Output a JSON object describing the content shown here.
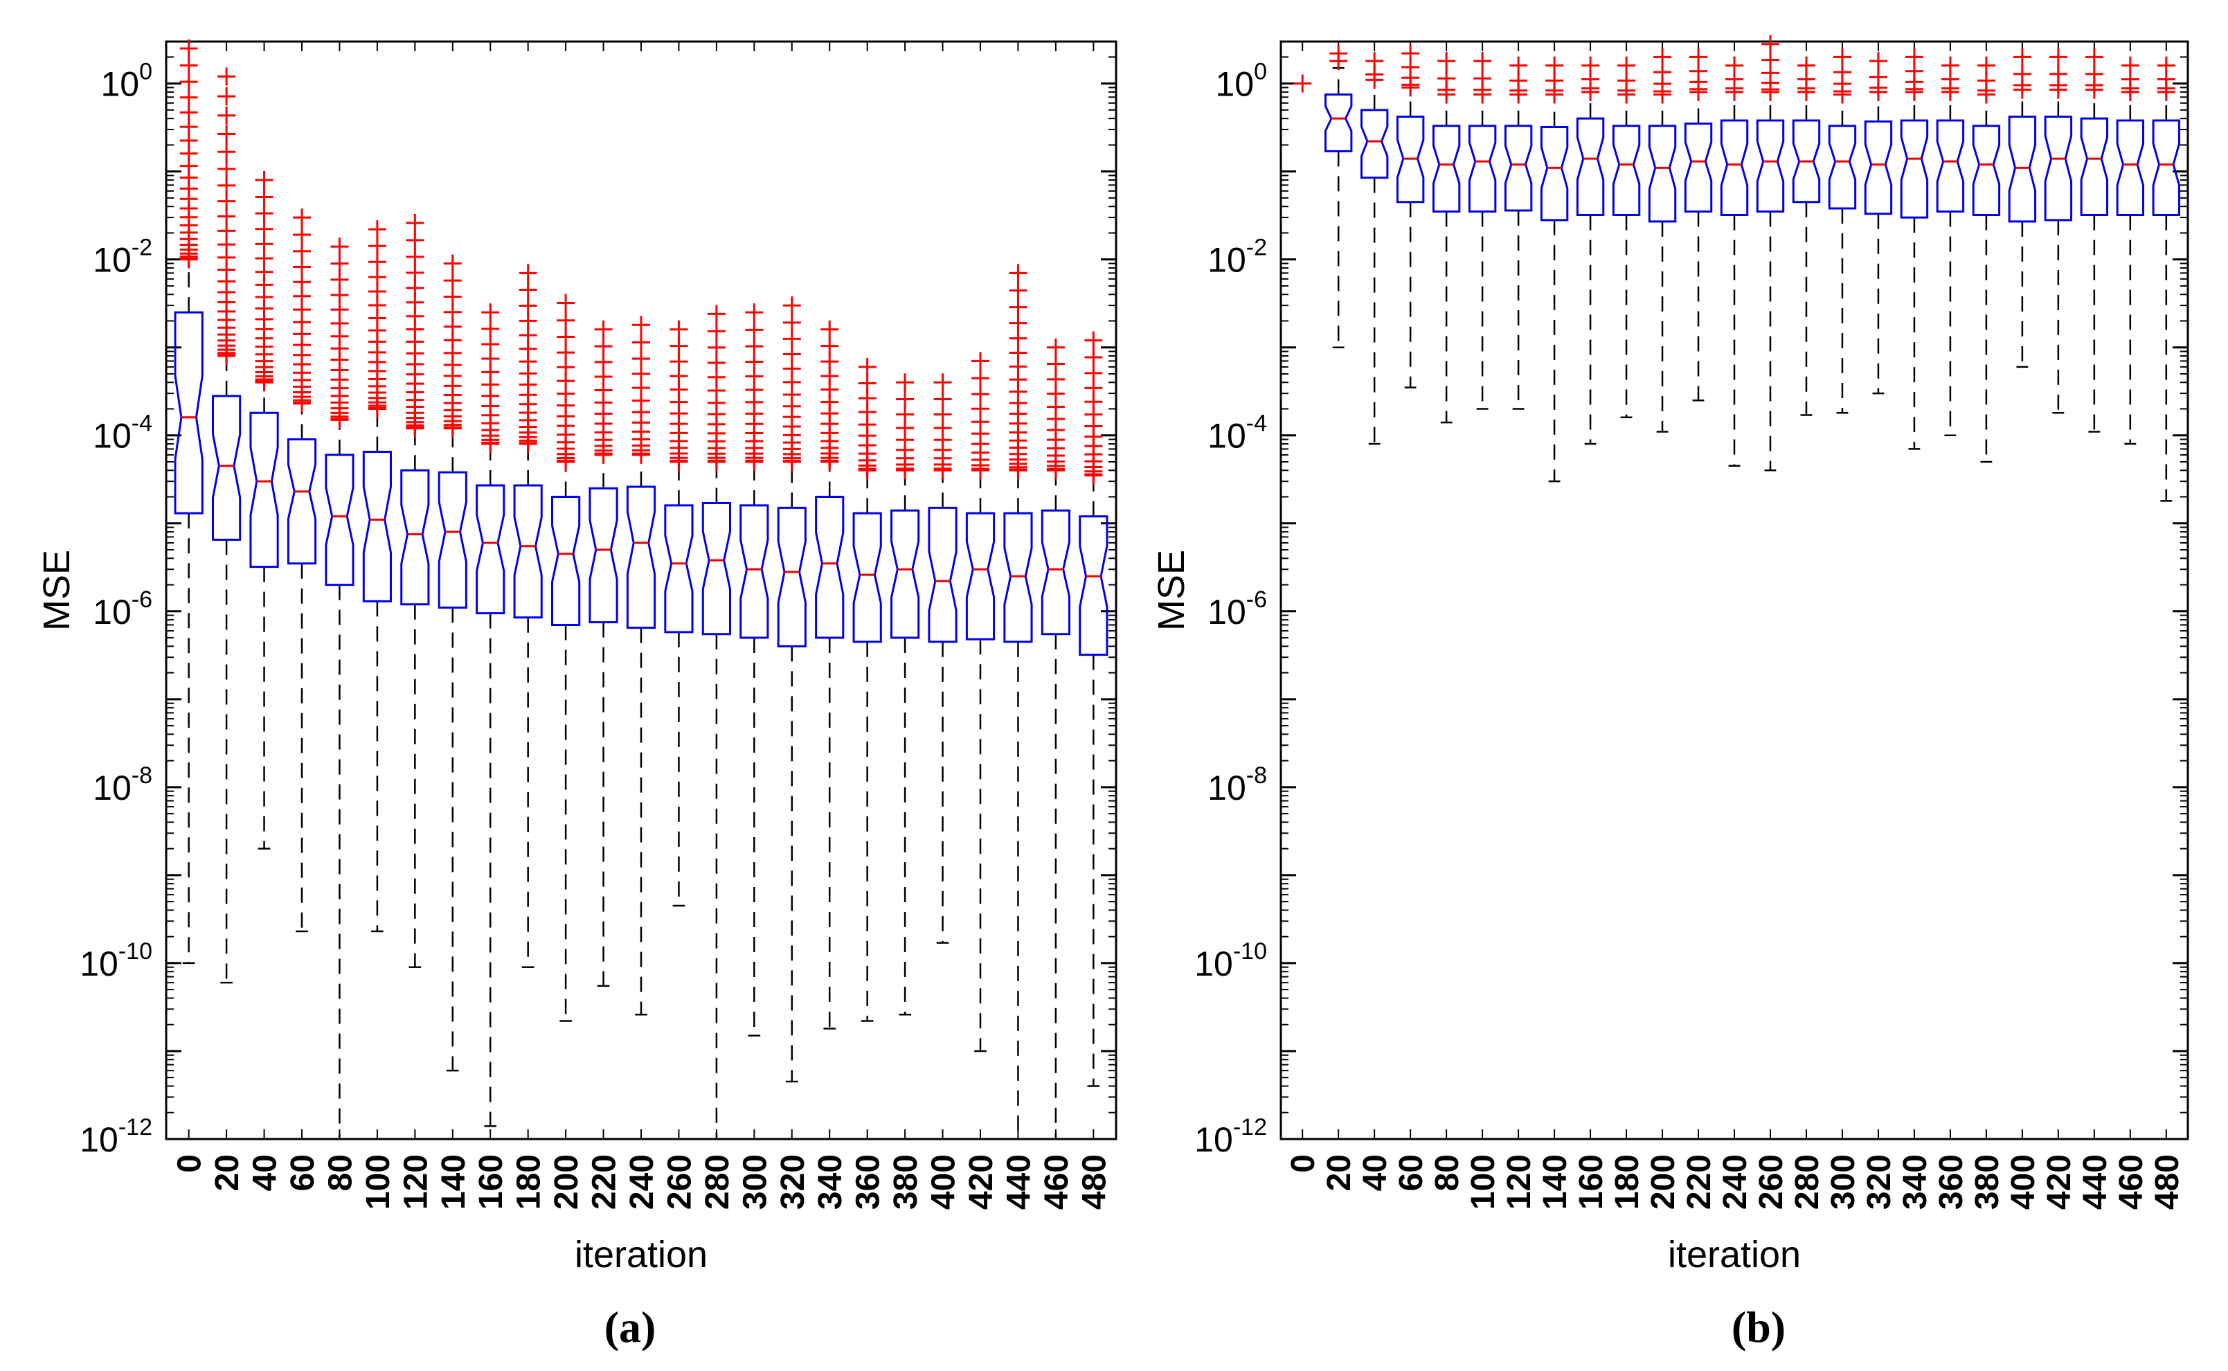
{
  "chart_data": [
    {
      "type": "boxplot",
      "panel_label": "(a)",
      "xlabel": "iteration",
      "ylabel": "MSE",
      "yscale": "log",
      "ylim": [
        1e-12,
        3
      ],
      "y_ticks": [
        {
          "base": "10",
          "exp": "-12"
        },
        {
          "base": "10",
          "exp": "-10"
        },
        {
          "base": "10",
          "exp": "-8"
        },
        {
          "base": "10",
          "exp": "-6"
        },
        {
          "base": "10",
          "exp": "-4"
        },
        {
          "base": "10",
          "exp": "-2"
        },
        {
          "base": "10",
          "exp": "0"
        }
      ],
      "categories": [
        "0",
        "20",
        "40",
        "60",
        "80",
        "100",
        "120",
        "140",
        "160",
        "180",
        "200",
        "220",
        "240",
        "260",
        "280",
        "300",
        "320",
        "340",
        "360",
        "380",
        "400",
        "420",
        "440",
        "460",
        "480"
      ],
      "boxes": [
        {
          "whisker_low": 1e-10,
          "q1": 1.3e-05,
          "median": 0.00016,
          "q3": 0.0025,
          "whisker_high": 0.01,
          "outliers_low": 0.01,
          "outliers_high": 2.5
        },
        {
          "whisker_low": 6e-11,
          "q1": 6.5e-06,
          "median": 4.5e-05,
          "q3": 0.00028,
          "whisker_high": 0.0008,
          "outliers_low": 0.0008,
          "outliers_high": 1.2
        },
        {
          "whisker_low": 2e-09,
          "q1": 3.2e-06,
          "median": 3e-05,
          "q3": 0.00018,
          "whisker_high": 0.0004,
          "outliers_low": 0.0004,
          "outliers_high": 0.08
        },
        {
          "whisker_low": 2.3e-10,
          "q1": 3.5e-06,
          "median": 2.3e-05,
          "q3": 9e-05,
          "whisker_high": 0.00023,
          "outliers_low": 0.00023,
          "outliers_high": 0.03
        },
        {
          "whisker_low": 1e-12,
          "q1": 2e-06,
          "median": 1.2e-05,
          "q3": 6e-05,
          "whisker_high": 0.00015,
          "outliers_low": 0.00015,
          "outliers_high": 0.014
        },
        {
          "whisker_low": 2.3e-10,
          "q1": 1.3e-06,
          "median": 1.1e-05,
          "q3": 6.5e-05,
          "whisker_high": 0.0002,
          "outliers_low": 0.0002,
          "outliers_high": 0.022
        },
        {
          "whisker_low": 9e-11,
          "q1": 1.2e-06,
          "median": 7.5e-06,
          "q3": 4e-05,
          "whisker_high": 0.00012,
          "outliers_low": 0.00012,
          "outliers_high": 0.026
        },
        {
          "whisker_low": 6e-12,
          "q1": 1.1e-06,
          "median": 8e-06,
          "q3": 3.8e-05,
          "whisker_high": 0.00012,
          "outliers_low": 0.00012,
          "outliers_high": 0.009
        },
        {
          "whisker_low": 1.4e-12,
          "q1": 9.5e-07,
          "median": 6e-06,
          "q3": 2.7e-05,
          "whisker_high": 8e-05,
          "outliers_low": 8e-05,
          "outliers_high": 0.0025
        },
        {
          "whisker_low": 9e-11,
          "q1": 8.5e-07,
          "median": 5.5e-06,
          "q3": 2.7e-05,
          "whisker_high": 8e-05,
          "outliers_low": 8e-05,
          "outliers_high": 0.007
        },
        {
          "whisker_low": 2.2e-11,
          "q1": 7e-07,
          "median": 4.5e-06,
          "q3": 2e-05,
          "whisker_high": 5e-05,
          "outliers_low": 5e-05,
          "outliers_high": 0.0032
        },
        {
          "whisker_low": 5.5e-11,
          "q1": 7.5e-07,
          "median": 5e-06,
          "q3": 2.5e-05,
          "whisker_high": 6e-05,
          "outliers_low": 6e-05,
          "outliers_high": 0.0016
        },
        {
          "whisker_low": 2.6e-11,
          "q1": 6.5e-07,
          "median": 6e-06,
          "q3": 2.6e-05,
          "whisker_high": 6e-05,
          "outliers_low": 6e-05,
          "outliers_high": 0.0018
        },
        {
          "whisker_low": 4.5e-10,
          "q1": 5.8e-07,
          "median": 3.5e-06,
          "q3": 1.6e-05,
          "whisker_high": 5e-05,
          "outliers_low": 5e-05,
          "outliers_high": 0.0016
        },
        {
          "whisker_low": 1e-12,
          "q1": 5.5e-07,
          "median": 3.8e-06,
          "q3": 1.7e-05,
          "whisker_high": 5e-05,
          "outliers_low": 5e-05,
          "outliers_high": 0.0024
        },
        {
          "whisker_low": 1.5e-11,
          "q1": 5e-07,
          "median": 3e-06,
          "q3": 1.6e-05,
          "whisker_high": 5e-05,
          "outliers_low": 5e-05,
          "outliers_high": 0.0025
        },
        {
          "whisker_low": 4.5e-12,
          "q1": 4e-07,
          "median": 2.8e-06,
          "q3": 1.5e-05,
          "whisker_high": 5e-05,
          "outliers_low": 5e-05,
          "outliers_high": 0.003
        },
        {
          "whisker_low": 1.8e-11,
          "q1": 5e-07,
          "median": 3.5e-06,
          "q3": 2e-05,
          "whisker_high": 5e-05,
          "outliers_low": 5e-05,
          "outliers_high": 0.0016
        },
        {
          "whisker_low": 2.2e-11,
          "q1": 4.5e-07,
          "median": 2.6e-06,
          "q3": 1.3e-05,
          "whisker_high": 4e-05,
          "outliers_low": 4e-05,
          "outliers_high": 0.0006
        },
        {
          "whisker_low": 2.6e-11,
          "q1": 5e-07,
          "median": 3e-06,
          "q3": 1.4e-05,
          "whisker_high": 4e-05,
          "outliers_low": 4e-05,
          "outliers_high": 0.0004
        },
        {
          "whisker_low": 1.7e-10,
          "q1": 4.5e-07,
          "median": 2.2e-06,
          "q3": 1.5e-05,
          "whisker_high": 4e-05,
          "outliers_low": 4e-05,
          "outliers_high": 0.0004
        },
        {
          "whisker_low": 1e-11,
          "q1": 4.8e-07,
          "median": 3e-06,
          "q3": 1.3e-05,
          "whisker_high": 4e-05,
          "outliers_low": 4e-05,
          "outliers_high": 0.0007
        },
        {
          "whisker_low": 1e-12,
          "q1": 4.5e-07,
          "median": 2.5e-06,
          "q3": 1.3e-05,
          "whisker_high": 4e-05,
          "outliers_low": 4e-05,
          "outliers_high": 0.007
        },
        {
          "whisker_low": 1e-12,
          "q1": 5.5e-07,
          "median": 3e-06,
          "q3": 1.4e-05,
          "whisker_high": 4e-05,
          "outliers_low": 4e-05,
          "outliers_high": 0.001
        },
        {
          "whisker_low": 4e-12,
          "q1": 3.2e-07,
          "median": 2.5e-06,
          "q3": 1.2e-05,
          "whisker_high": 3.5e-05,
          "outliers_low": 3.5e-05,
          "outliers_high": 0.0012
        }
      ]
    },
    {
      "type": "boxplot",
      "panel_label": "(b)",
      "xlabel": "iteration",
      "ylabel": "MSE",
      "yscale": "log",
      "ylim": [
        1e-12,
        3
      ],
      "y_ticks": [
        {
          "base": "10",
          "exp": "-12"
        },
        {
          "base": "10",
          "exp": "-10"
        },
        {
          "base": "10",
          "exp": "-8"
        },
        {
          "base": "10",
          "exp": "-6"
        },
        {
          "base": "10",
          "exp": "-4"
        },
        {
          "base": "10",
          "exp": "-2"
        },
        {
          "base": "10",
          "exp": "0"
        }
      ],
      "categories": [
        "0",
        "20",
        "40",
        "60",
        "80",
        "100",
        "120",
        "140",
        "160",
        "180",
        "200",
        "220",
        "240",
        "260",
        "280",
        "300",
        "320",
        "340",
        "360",
        "380",
        "400",
        "420",
        "440",
        "460",
        "480"
      ],
      "boxes": [
        {
          "whisker_low": null,
          "q1": null,
          "median": null,
          "q3": null,
          "whisker_high": null,
          "outliers_low": 1.0,
          "outliers_high": 1.0
        },
        {
          "whisker_low": 0.001,
          "q1": 0.17,
          "median": 0.4,
          "q3": 0.75,
          "whisker_high": 1.5,
          "outliers_low": 1.8,
          "outliers_high": 2.2
        },
        {
          "whisker_low": 8e-05,
          "q1": 0.085,
          "median": 0.22,
          "q3": 0.5,
          "whisker_high": 1.1,
          "outliers_low": 1.1,
          "outliers_high": 1.8
        },
        {
          "whisker_low": 0.00035,
          "q1": 0.045,
          "median": 0.14,
          "q3": 0.42,
          "whisker_high": 0.9,
          "outliers_low": 0.9,
          "outliers_high": 2.2
        },
        {
          "whisker_low": 0.00014,
          "q1": 0.035,
          "median": 0.12,
          "q3": 0.33,
          "whisker_high": 0.75,
          "outliers_low": 0.75,
          "outliers_high": 1.8
        },
        {
          "whisker_low": 0.0002,
          "q1": 0.035,
          "median": 0.13,
          "q3": 0.33,
          "whisker_high": 0.75,
          "outliers_low": 0.75,
          "outliers_high": 1.8
        },
        {
          "whisker_low": 0.0002,
          "q1": 0.036,
          "median": 0.12,
          "q3": 0.33,
          "whisker_high": 0.75,
          "outliers_low": 0.75,
          "outliers_high": 1.6
        },
        {
          "whisker_low": 3e-05,
          "q1": 0.028,
          "median": 0.11,
          "q3": 0.32,
          "whisker_high": 0.75,
          "outliers_low": 0.75,
          "outliers_high": 1.6
        },
        {
          "whisker_low": 8e-05,
          "q1": 0.032,
          "median": 0.14,
          "q3": 0.4,
          "whisker_high": 0.8,
          "outliers_low": 0.8,
          "outliers_high": 1.6
        },
        {
          "whisker_low": 0.00016,
          "q1": 0.032,
          "median": 0.12,
          "q3": 0.33,
          "whisker_high": 0.75,
          "outliers_low": 0.75,
          "outliers_high": 1.6
        },
        {
          "whisker_low": 0.00011,
          "q1": 0.027,
          "median": 0.11,
          "q3": 0.33,
          "whisker_high": 0.75,
          "outliers_low": 0.75,
          "outliers_high": 2.0
        },
        {
          "whisker_low": 0.00025,
          "q1": 0.035,
          "median": 0.13,
          "q3": 0.35,
          "whisker_high": 0.8,
          "outliers_low": 0.8,
          "outliers_high": 2.0
        },
        {
          "whisker_low": 4.5e-05,
          "q1": 0.032,
          "median": 0.12,
          "q3": 0.38,
          "whisker_high": 0.8,
          "outliers_low": 0.8,
          "outliers_high": 1.6
        },
        {
          "whisker_low": 4e-05,
          "q1": 0.035,
          "median": 0.13,
          "q3": 0.38,
          "whisker_high": 0.8,
          "outliers_low": 0.8,
          "outliers_high": 2.8
        },
        {
          "whisker_low": 0.00017,
          "q1": 0.045,
          "median": 0.13,
          "q3": 0.38,
          "whisker_high": 0.8,
          "outliers_low": 0.8,
          "outliers_high": 1.6
        },
        {
          "whisker_low": 0.00018,
          "q1": 0.038,
          "median": 0.13,
          "q3": 0.33,
          "whisker_high": 0.75,
          "outliers_low": 0.75,
          "outliers_high": 2.0
        },
        {
          "whisker_low": 0.0003,
          "q1": 0.033,
          "median": 0.12,
          "q3": 0.37,
          "whisker_high": 0.8,
          "outliers_low": 0.8,
          "outliers_high": 1.8
        },
        {
          "whisker_low": 7e-05,
          "q1": 0.03,
          "median": 0.14,
          "q3": 0.38,
          "whisker_high": 0.8,
          "outliers_low": 0.8,
          "outliers_high": 2.0
        },
        {
          "whisker_low": 0.0001,
          "q1": 0.035,
          "median": 0.13,
          "q3": 0.38,
          "whisker_high": 0.8,
          "outliers_low": 0.8,
          "outliers_high": 1.6
        },
        {
          "whisker_low": 5e-05,
          "q1": 0.032,
          "median": 0.12,
          "q3": 0.33,
          "whisker_high": 0.75,
          "outliers_low": 0.75,
          "outliers_high": 1.6
        },
        {
          "whisker_low": 0.0006,
          "q1": 0.027,
          "median": 0.11,
          "q3": 0.42,
          "whisker_high": 0.85,
          "outliers_low": 0.85,
          "outliers_high": 2.0
        },
        {
          "whisker_low": 0.00018,
          "q1": 0.028,
          "median": 0.14,
          "q3": 0.42,
          "whisker_high": 0.85,
          "outliers_low": 0.85,
          "outliers_high": 2.0
        },
        {
          "whisker_low": 0.00011,
          "q1": 0.032,
          "median": 0.14,
          "q3": 0.4,
          "whisker_high": 0.85,
          "outliers_low": 0.85,
          "outliers_high": 2.0
        },
        {
          "whisker_low": 8e-05,
          "q1": 0.032,
          "median": 0.12,
          "q3": 0.38,
          "whisker_high": 0.8,
          "outliers_low": 0.8,
          "outliers_high": 1.6
        },
        {
          "whisker_low": 1.8e-05,
          "q1": 0.032,
          "median": 0.12,
          "q3": 0.38,
          "whisker_high": 0.8,
          "outliers_low": 0.8,
          "outliers_high": 1.6
        }
      ]
    }
  ]
}
